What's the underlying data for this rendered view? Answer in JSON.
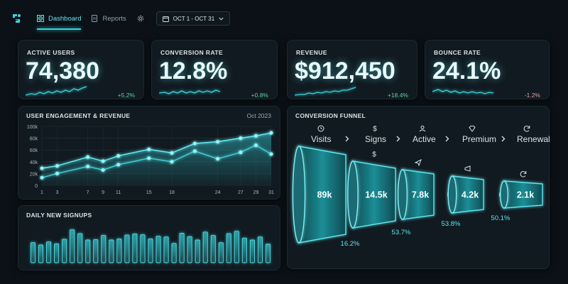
{
  "nav": {
    "tabs": [
      {
        "label": "Dashboard",
        "icon": "grid-icon",
        "active": true
      },
      {
        "label": "Reports",
        "icon": "document-icon",
        "active": false
      }
    ],
    "date_range": "OCT 1 - OCT 31"
  },
  "kpis": [
    {
      "label": "ACTIVE USERS",
      "value": "74,380",
      "delta": "+5.2%",
      "trend": "up"
    },
    {
      "label": "CONVERSION RATE",
      "value": "12.8%",
      "delta": "+0.8%",
      "trend": "up"
    },
    {
      "label": "REVENUE",
      "value": "$912,450",
      "delta": "+18.4%",
      "trend": "up"
    },
    {
      "label": "BOUNCE RATE",
      "value": "24.1%",
      "delta": "-1.2%",
      "trend": "down"
    }
  ],
  "engagement": {
    "title": "USER ENGAGEMENT & REVENUE",
    "period": "Oct 2023"
  },
  "signups": {
    "title": "DAILY NEW SIGNUPS"
  },
  "funnel": {
    "title": "CONVERSION FUNNEL",
    "stages": [
      {
        "label": "Visits",
        "icon": "clock-icon",
        "value": "89k"
      },
      {
        "label": "Signs",
        "icon": "dollar-icon",
        "value": "14.5k"
      },
      {
        "label": "Active",
        "icon": "user-icon",
        "value": "7.8k"
      },
      {
        "label": "Premium",
        "icon": "diamond-icon",
        "value": "4.2k"
      },
      {
        "label": "Renewal",
        "icon": "refresh-icon",
        "value": "2.1k"
      }
    ],
    "rates": [
      "16.2%",
      "53.7%",
      "53.8%",
      "50.1%"
    ]
  },
  "colors": {
    "accent": "#35d6e0",
    "positive": "#5fd3a1",
    "background": "#0b1116",
    "card": "#111a20"
  },
  "chart_data": [
    {
      "type": "line",
      "title": "USER ENGAGEMENT & REVENUE",
      "subtitle": "Oct 2023",
      "x": [
        1,
        3,
        7,
        9,
        11,
        15,
        18,
        21,
        24,
        27,
        29,
        31
      ],
      "x_ticks": [
        1,
        3,
        7,
        9,
        11,
        15,
        18,
        24,
        27,
        29,
        31
      ],
      "y_ticks": [
        "0",
        "20k",
        "40k",
        "60k",
        "80k",
        "100k"
      ],
      "ylim": [
        0,
        100000
      ],
      "grid": true,
      "series": [
        {
          "values": [
            29000,
            33000,
            48000,
            41000,
            50000,
            61000,
            55000,
            71000,
            74000,
            80000,
            84000,
            89000
          ]
        },
        {
          "values": [
            13000,
            20000,
            32000,
            26000,
            35000,
            46000,
            40000,
            58000,
            45000,
            56000,
            68000,
            53000
          ]
        }
      ]
    },
    {
      "type": "bar",
      "title": "DAILY NEW SIGNUPS",
      "values": [
        5.3,
        4.7,
        5.5,
        5.0,
        6.2,
        8.7,
        7.7,
        6.0,
        6.1,
        7.2,
        6.0,
        6.3,
        7.3,
        7.6,
        7.4,
        6.3,
        7.0,
        6.8,
        5.1,
        7.8,
        6.9,
        6.0,
        8.1,
        7.2,
        5.3,
        7.7,
        8.3,
        6.5,
        6.0,
        6.8,
        4.9
      ]
    }
  ]
}
